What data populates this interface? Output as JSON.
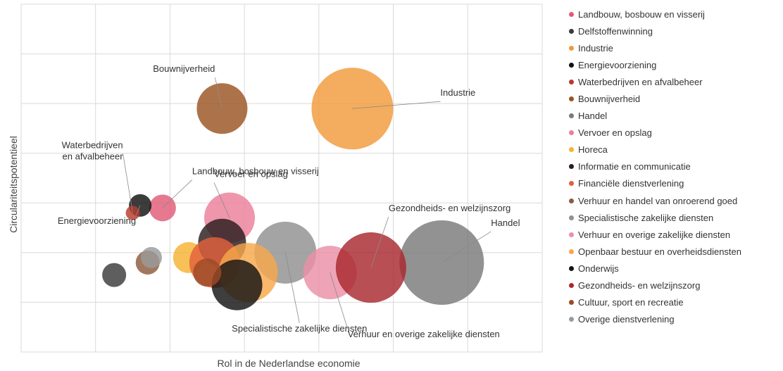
{
  "chart_data": {
    "type": "bubble",
    "xlabel": "Rol in de Nederlandse economie",
    "ylabel": "Circulariteitspotentieel",
    "xlim": [
      0,
      7
    ],
    "ylim": [
      0,
      7
    ],
    "grid": true,
    "legend_position": "right",
    "series": [
      {
        "name": "Landbouw, bosbouw en visserij",
        "color": "#e05a77",
        "x": 1.9,
        "y": 2.9,
        "size": 19
      },
      {
        "name": "Delfstoffenwinning",
        "color": "#3b3b3b",
        "x": 1.25,
        "y": 1.55,
        "size": 17
      },
      {
        "name": "Industrie",
        "color": "#f29a3b",
        "x": 4.45,
        "y": 4.9,
        "size": 58
      },
      {
        "name": "Energievoorziening",
        "color": "#111111",
        "x": 1.6,
        "y": 2.95,
        "size": 16
      },
      {
        "name": "Waterbedrijven en afvalbeheer",
        "color": "#b83a2c",
        "x": 1.5,
        "y": 2.8,
        "size": 10
      },
      {
        "name": "Bouwnijverheid",
        "color": "#9a5422",
        "x": 2.7,
        "y": 4.9,
        "size": 36
      },
      {
        "name": "Handel",
        "color": "#7a7a7a",
        "x": 5.65,
        "y": 1.8,
        "size": 60
      },
      {
        "name": "Vervoer en opslag",
        "color": "#ec7f9a",
        "x": 2.8,
        "y": 2.7,
        "size": 36
      },
      {
        "name": "Horeca",
        "color": "#f5b332",
        "x": 2.25,
        "y": 1.9,
        "size": 22
      },
      {
        "name": "Informatie en communicatie",
        "color": "#2a1d1d",
        "x": 2.7,
        "y": 2.2,
        "size": 34
      },
      {
        "name": "Financiële dienstverlening",
        "color": "#e2603c",
        "x": 2.6,
        "y": 1.8,
        "size": 36
      },
      {
        "name": "Verhuur en handel van onroerend goed",
        "color": "#8c5a3c",
        "x": 1.7,
        "y": 1.8,
        "size": 17
      },
      {
        "name": "Specialistische zakelijke diensten",
        "color": "#909090",
        "x": 3.55,
        "y": 2.0,
        "size": 44
      },
      {
        "name": "Verhuur en overige zakelijke diensten",
        "color": "#eb8fa6",
        "x": 4.15,
        "y": 1.6,
        "size": 38
      },
      {
        "name": "Openbaar bestuur en overheidsdiensten",
        "color": "#f6a74a",
        "x": 3.05,
        "y": 1.6,
        "size": 42
      },
      {
        "name": "Onderwijs",
        "color": "#141414",
        "x": 2.9,
        "y": 1.35,
        "size": 36
      },
      {
        "name": "Gezondheids- en welzijnszorg",
        "color": "#a8282e",
        "x": 4.7,
        "y": 1.7,
        "size": 50
      },
      {
        "name": "Cultuur, sport en recreatie",
        "color": "#9c4a24",
        "x": 2.5,
        "y": 1.6,
        "size": 20
      },
      {
        "name": "Overige dienstverlening",
        "color": "#9a9a9a",
        "x": 1.75,
        "y": 1.9,
        "size": 15
      }
    ],
    "annotations": [
      {
        "text": "Bouwnijverheid",
        "series": "Bouwnijverheid"
      },
      {
        "text": "Industrie",
        "series": "Industrie"
      },
      {
        "text": "Waterbedrijven en afvalbeheer",
        "lines": [
          "Waterbedrijven",
          "en afvalbeheer"
        ],
        "series": "Waterbedrijven en afvalbeheer"
      },
      {
        "text": "Landbouw, bosbouw en visserij",
        "series": "Landbouw, bosbouw en visserij"
      },
      {
        "text": "Vervoer en opslag",
        "series": "Vervoer en opslag"
      },
      {
        "text": "Energievoorziening",
        "series": "Energievoorziening"
      },
      {
        "text": "Gezondheids- en welzijnszorg",
        "series": "Gezondheids- en welzijnszorg"
      },
      {
        "text": "Handel",
        "series": "Handel"
      },
      {
        "text": "Specialistische zakelijke diensten",
        "series": "Specialistische zakelijke diensten"
      },
      {
        "text": "Verhuur en overige zakelijke diensten",
        "series": "Verhuur en overige zakelijke diensten"
      }
    ]
  }
}
